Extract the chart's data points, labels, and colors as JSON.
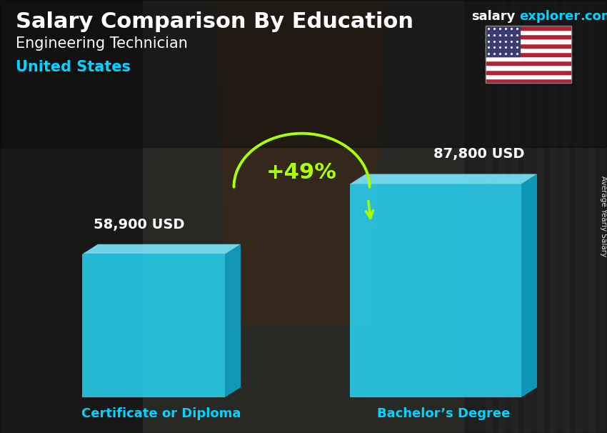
{
  "title_main": "Salary Comparison By Education",
  "subtitle1": "Engineering Technician",
  "subtitle2": "United States",
  "categories": [
    "Certificate or Diploma",
    "Bachelor’s Degree"
  ],
  "values": [
    58900,
    87800
  ],
  "value_labels": [
    "58,900 USD",
    "87,800 USD"
  ],
  "pct_change": "+49%",
  "bar_face_color": "#29d0f0",
  "bar_side_color": "#0ea8cc",
  "bar_top_color": "#7ae8ff",
  "bar_side_dark": "#0088aa",
  "bg_color": "#3a3a3a",
  "title_color": "#ffffff",
  "subtitle1_color": "#ffffff",
  "subtitle2_color": "#00d4ff",
  "category_label_color": "#00d4ff",
  "value_label_color": "#ffffff",
  "pct_color": "#aaff00",
  "arrow_color": "#aaff00",
  "brand_salary_color": "#ffffff",
  "brand_explorer_color": "#00d4ff",
  "side_label": "Average Yearly Salary",
  "figsize": [
    8.5,
    6.06
  ],
  "dpi": 100
}
